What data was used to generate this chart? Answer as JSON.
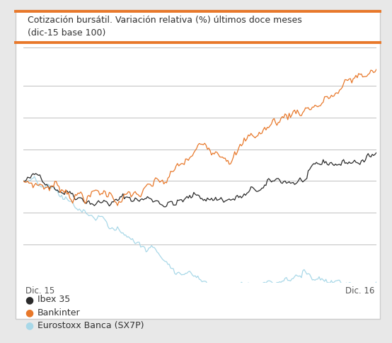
{
  "title_line1": "Cotización bursátil. Variación relativa (%) últimos doce meses",
  "title_line2": "(dic-15 base 100)",
  "xlabel_left": "Dic. 15",
  "xlabel_right": "Dic. 16",
  "legend": [
    "Ibex 35",
    "Bankinter",
    "Eurostoxx Banca (SX7P)"
  ],
  "colors": {
    "ibex": "#2b2b2b",
    "bankinter": "#E8782A",
    "eurostoxx": "#A8D8E8",
    "title_bar": "#E8782A",
    "background": "#e8e8e8",
    "plot_bg": "#ffffff",
    "box_border": "#cccccc",
    "grid": "#c0c0c0",
    "axis_label": "#555555",
    "title_text": "#333333",
    "legend_text": "#333333"
  },
  "ylim": [
    -32,
    42
  ],
  "grid_lines": [
    -20,
    -10,
    0,
    10,
    20,
    30
  ],
  "n_points": 260
}
